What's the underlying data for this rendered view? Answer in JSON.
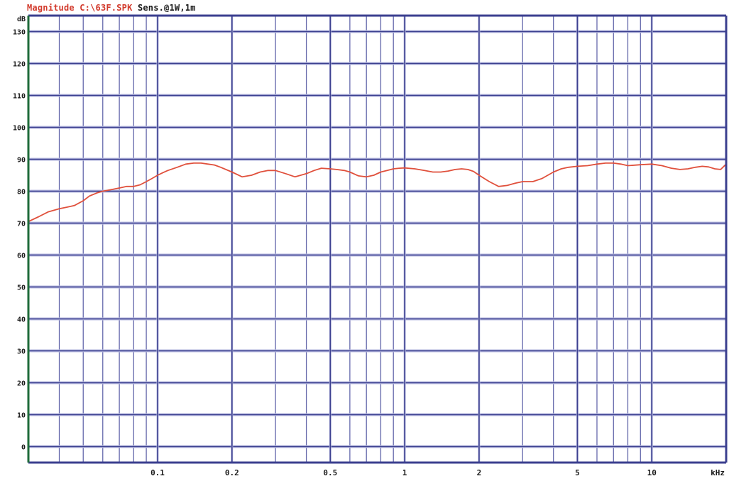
{
  "header": {
    "title": "Magnitude C:\\63F.SPK",
    "sensitivity": "Sens.@1W,1m"
  },
  "chart_data": {
    "type": "line",
    "xscale": "log",
    "xlim": [
      0.03,
      20
    ],
    "ylim": [
      -5,
      135
    ],
    "yunit_label": "dB",
    "xunit_label": "kHz",
    "y_ticks": [
      0,
      10,
      20,
      30,
      40,
      50,
      60,
      70,
      80,
      90,
      100,
      110,
      120,
      130
    ],
    "y_tick_labels": [
      "0",
      "10",
      "20",
      "30",
      "40",
      "50",
      "60",
      "70",
      "80",
      "90",
      "100",
      "110",
      "120",
      "130"
    ],
    "x_ticks": [
      0.1,
      0.2,
      0.5,
      1,
      2,
      5,
      10
    ],
    "x_tick_labels": [
      "0.1",
      "0.2",
      "0.5",
      "1",
      "2",
      "5",
      "10"
    ],
    "grid": true,
    "colors": {
      "grid": "#3b3f8f",
      "minor_grid": "#b9bbe0",
      "curve": "#e0503c",
      "left_axis": "#1f6b3a"
    },
    "series": [
      {
        "x": [
          0.03,
          0.033,
          0.036,
          0.04,
          0.043,
          0.046,
          0.05,
          0.053,
          0.057,
          0.06,
          0.065,
          0.07,
          0.075,
          0.08,
          0.085,
          0.09,
          0.095,
          0.1,
          0.105,
          0.11,
          0.12,
          0.13,
          0.14,
          0.15,
          0.16,
          0.17,
          0.18,
          0.2,
          0.22,
          0.24,
          0.26,
          0.28,
          0.3,
          0.33,
          0.36,
          0.4,
          0.43,
          0.46,
          0.5,
          0.53,
          0.57,
          0.6,
          0.65,
          0.7,
          0.75,
          0.8,
          0.85,
          0.9,
          0.95,
          1.0,
          1.1,
          1.2,
          1.3,
          1.4,
          1.5,
          1.6,
          1.7,
          1.8,
          1.9,
          2.0,
          2.2,
          2.4,
          2.6,
          2.8,
          3.0,
          3.3,
          3.6,
          4.0,
          4.3,
          4.6,
          5.0,
          5.5,
          6.0,
          6.5,
          7.0,
          7.5,
          8.0,
          9.0,
          10.0,
          11.0,
          12.0,
          13.0,
          14.0,
          15.0,
          16.0,
          17.0,
          18.0,
          19.0,
          20.0
        ],
        "y": [
          70.5,
          72.0,
          73.5,
          74.5,
          75.0,
          75.5,
          77.0,
          78.5,
          79.5,
          80.0,
          80.5,
          81.0,
          81.5,
          81.5,
          82.0,
          83.0,
          84.0,
          85.0,
          85.8,
          86.5,
          87.5,
          88.5,
          88.8,
          88.8,
          88.5,
          88.2,
          87.5,
          86.0,
          84.5,
          85.0,
          86.0,
          86.5,
          86.5,
          85.5,
          84.5,
          85.5,
          86.5,
          87.2,
          87.0,
          86.8,
          86.5,
          86.0,
          84.8,
          84.5,
          85.0,
          86.0,
          86.5,
          87.0,
          87.2,
          87.3,
          87.0,
          86.5,
          86.0,
          86.0,
          86.3,
          86.8,
          87.0,
          86.8,
          86.2,
          85.0,
          83.0,
          81.5,
          81.8,
          82.5,
          83.0,
          83.0,
          84.0,
          86.0,
          87.0,
          87.5,
          87.8,
          88.0,
          88.5,
          88.8,
          88.8,
          88.5,
          88.0,
          88.3,
          88.5,
          88.0,
          87.2,
          86.8,
          87.0,
          87.5,
          87.8,
          87.6,
          87.0,
          86.8,
          88.5
        ]
      }
    ]
  }
}
